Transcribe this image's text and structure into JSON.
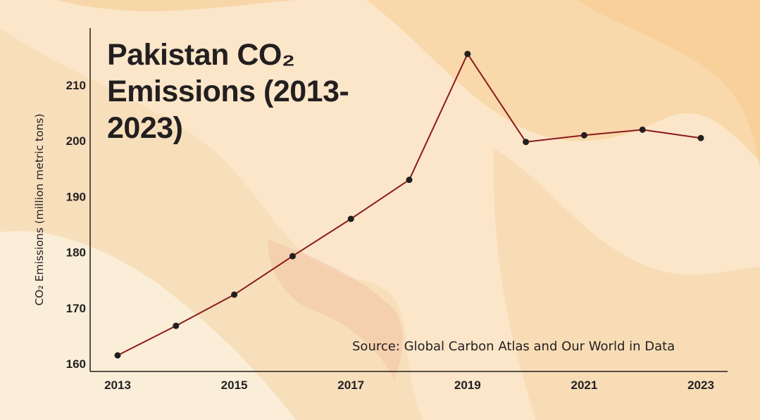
{
  "title": "Pakistan CO₂ Emissions (2013-2023)",
  "source": "Source: Global Carbon Atlas and Our World in Data",
  "colors": {
    "line": "#8b1a1a",
    "marker": "#231f20",
    "axis": "#231f20",
    "background": "#fbe6c9"
  },
  "chart_data": {
    "type": "line",
    "title": "Pakistan CO₂ Emissions (2013-2023)",
    "xlabel": "",
    "ylabel": "CO₂ Emissions (million metric tons)",
    "x": [
      2013,
      2014,
      2015,
      2016,
      2017,
      2018,
      2019,
      2020,
      2021,
      2022,
      2023
    ],
    "series": [
      {
        "values": [
          161.5,
          166.8,
          172.4,
          179.3,
          186.0,
          193.0,
          215.6,
          199.8,
          201.0,
          202.0,
          200.5
        ]
      }
    ],
    "xticks": [
      "2013",
      "2015",
      "2017",
      "2019",
      "2021",
      "2023"
    ],
    "yticks": [
      "160",
      "170",
      "180",
      "190",
      "200",
      "210"
    ],
    "ylim": [
      159,
      220
    ],
    "grid": false
  }
}
